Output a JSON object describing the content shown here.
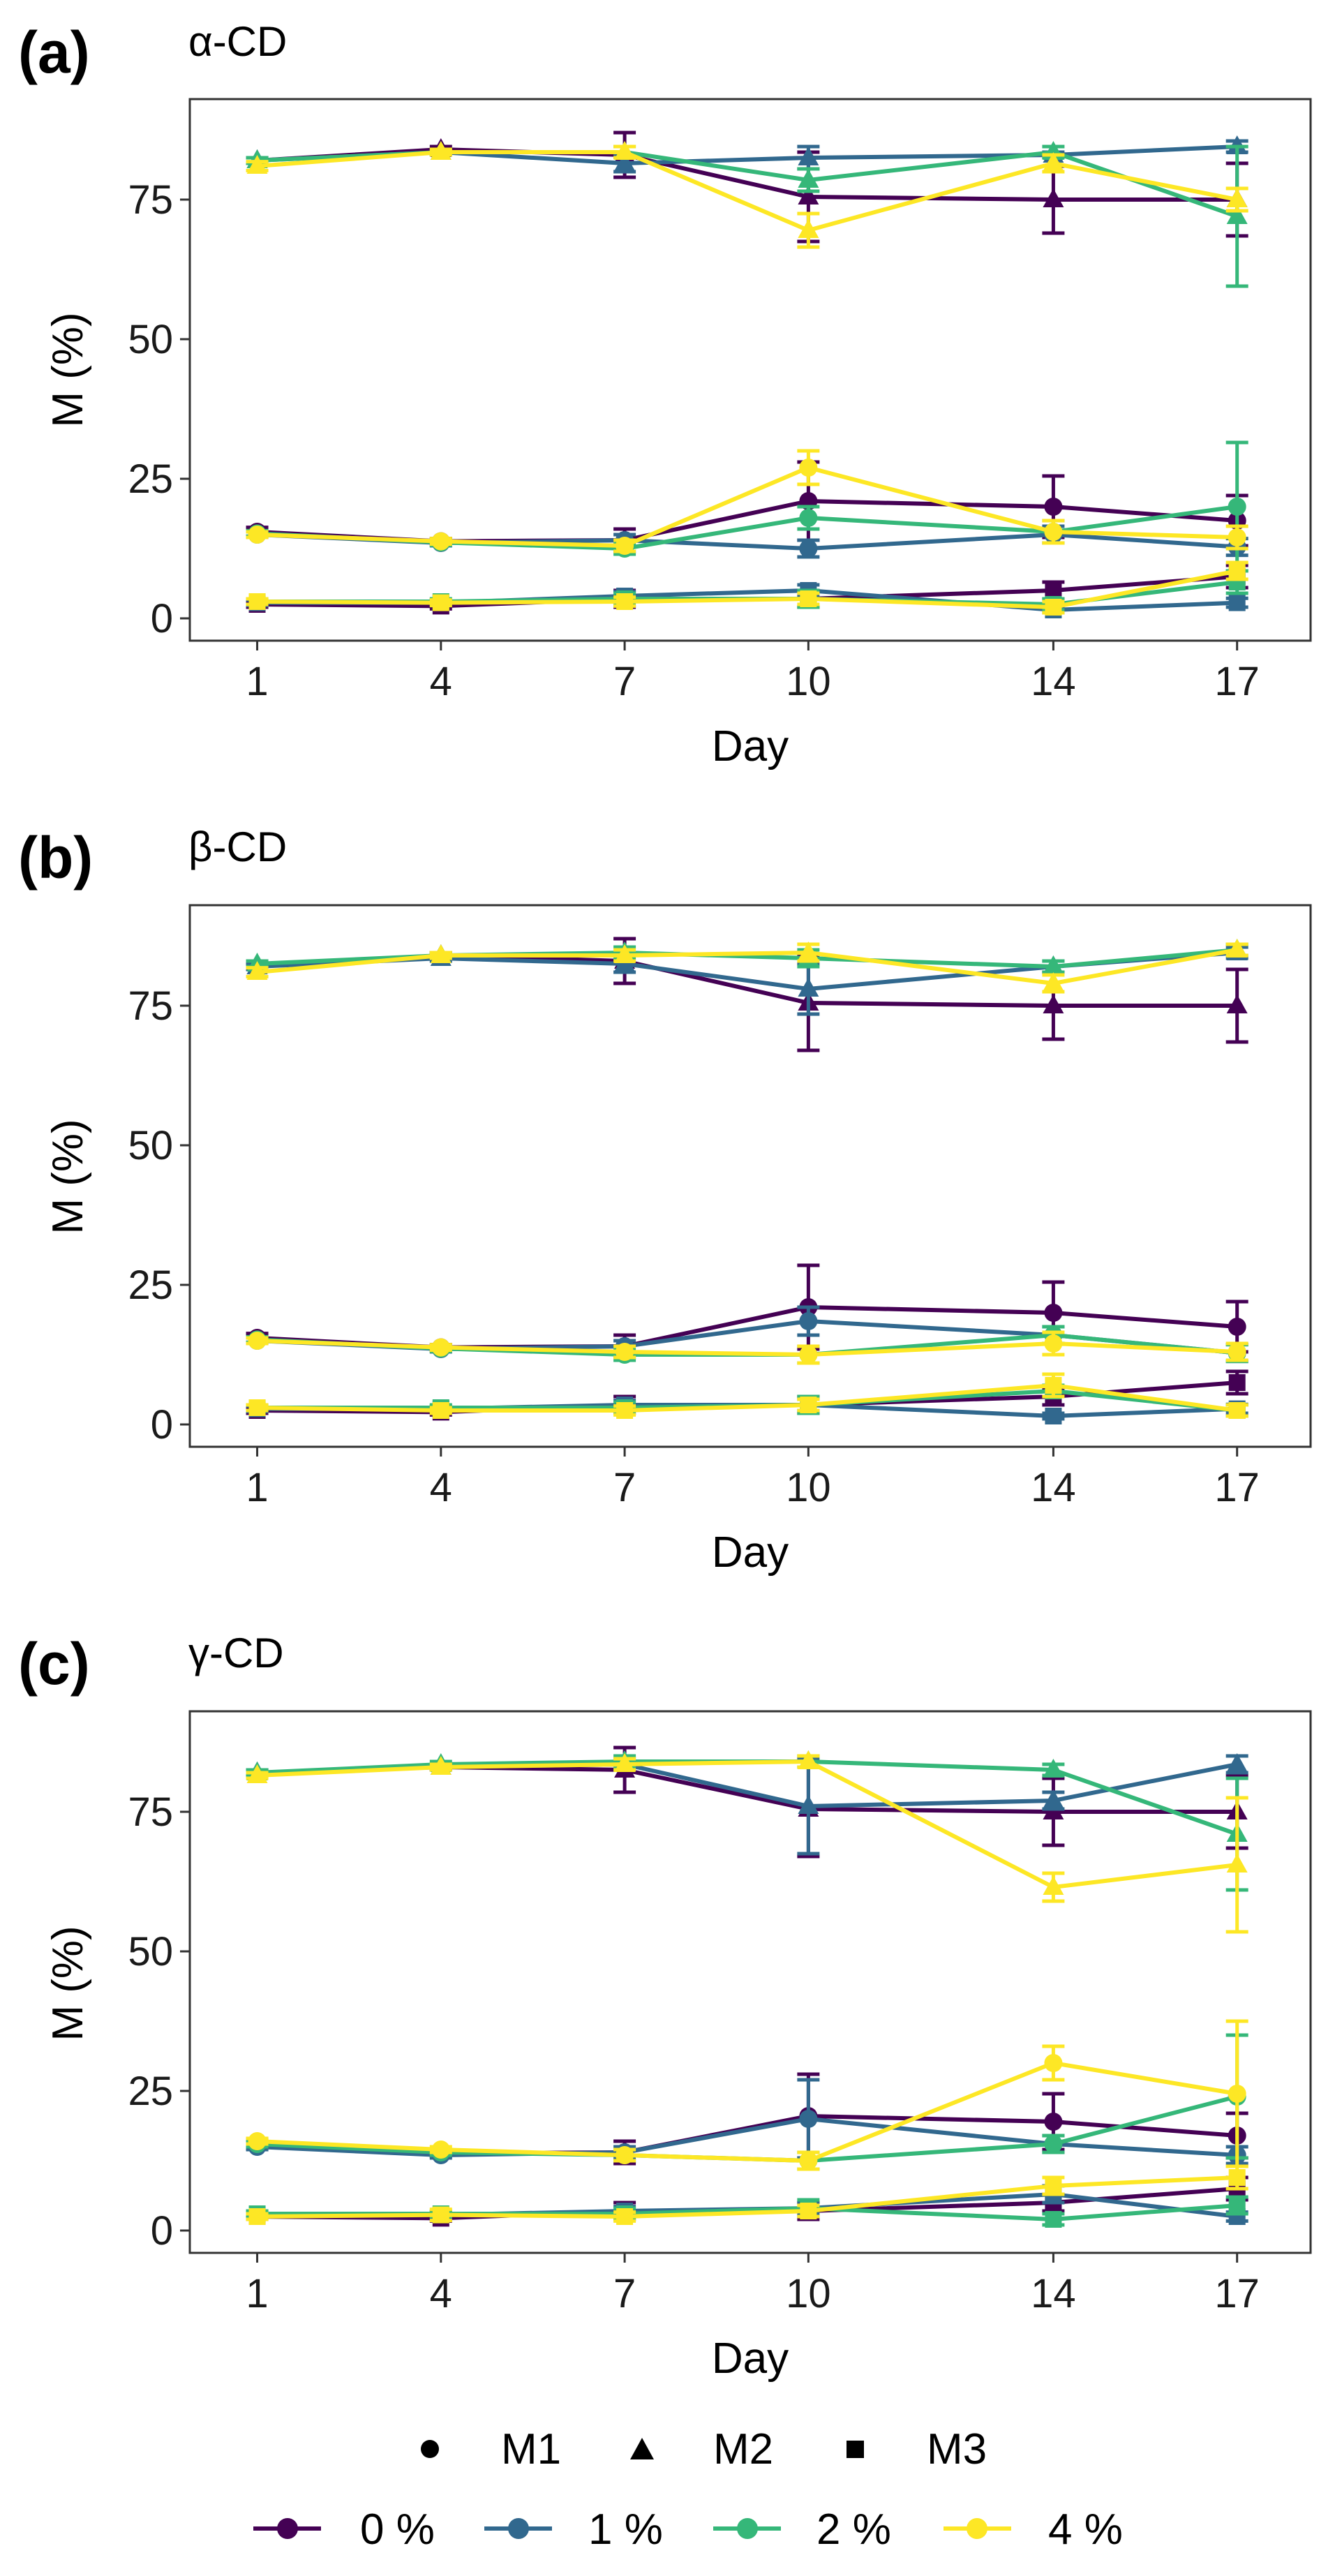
{
  "legend": {
    "shape_items": [
      {
        "label": "M1",
        "shape": "circle"
      },
      {
        "label": "M2",
        "shape": "triangle"
      },
      {
        "label": "M3",
        "shape": "square"
      }
    ],
    "color_items": [
      {
        "label": "0 %",
        "color": "#440154"
      },
      {
        "label": "1 %",
        "color": "#31688E"
      },
      {
        "label": "2 %",
        "color": "#35B779"
      },
      {
        "label": "4 %",
        "color": "#FDE725"
      }
    ]
  },
  "chart_data": [
    {
      "type": "line",
      "panel_label": "(a)",
      "title": "α-CD",
      "xlabel": "Day",
      "ylabel": "M (%)",
      "x": [
        1,
        4,
        7,
        10,
        14,
        17
      ],
      "xticks": [
        "1",
        "4",
        "7",
        "10",
        "14",
        "17"
      ],
      "yticks": [
        "0",
        "25",
        "50",
        "75"
      ],
      "ytick_values": [
        0,
        25,
        50,
        75
      ],
      "ylim": [
        -4,
        93
      ],
      "series": [
        {
          "name": "0 %",
          "metric": "M1",
          "color": "#440154",
          "values": [
            15.5,
            13.8,
            14.0,
            21.0,
            20.0,
            17.5
          ],
          "err": [
            0.8,
            0.5,
            2.0,
            7.0,
            5.5,
            4.5
          ]
        },
        {
          "name": "0 %",
          "metric": "M2",
          "color": "#440154",
          "values": [
            82.0,
            84.0,
            83.0,
            75.5,
            75.0,
            75.0
          ],
          "err": [
            0.5,
            0.5,
            4.0,
            8.0,
            6.0,
            6.5
          ]
        },
        {
          "name": "0 %",
          "metric": "M3",
          "color": "#440154",
          "values": [
            2.5,
            2.2,
            3.5,
            3.5,
            5.0,
            7.5
          ],
          "err": [
            0.5,
            0.5,
            1.5,
            1.5,
            1.5,
            2.0
          ]
        },
        {
          "name": "1 %",
          "metric": "M1",
          "color": "#31688E",
          "values": [
            15.0,
            13.5,
            14.0,
            12.5,
            15.0,
            12.8
          ],
          "err": [
            0.5,
            0.5,
            1.0,
            1.5,
            1.5,
            1.5
          ]
        },
        {
          "name": "1 %",
          "metric": "M2",
          "color": "#31688E",
          "values": [
            82.0,
            83.5,
            81.5,
            82.5,
            83.0,
            84.5
          ],
          "err": [
            0.5,
            0.5,
            1.5,
            2.0,
            0.5,
            1.0
          ]
        },
        {
          "name": "1 %",
          "metric": "M3",
          "color": "#31688E",
          "values": [
            2.8,
            2.8,
            4.0,
            5.0,
            1.5,
            2.8
          ],
          "err": [
            0.5,
            0.5,
            0.8,
            1.0,
            0.5,
            0.8
          ]
        },
        {
          "name": "2 %",
          "metric": "M1",
          "color": "#35B779",
          "values": [
            15.2,
            13.6,
            12.5,
            18.0,
            15.5,
            20.0
          ],
          "err": [
            0.5,
            0.5,
            1.0,
            2.0,
            2.0,
            11.5
          ]
        },
        {
          "name": "2 %",
          "metric": "M2",
          "color": "#35B779",
          "values": [
            82.0,
            83.5,
            83.5,
            78.5,
            83.5,
            72.0
          ],
          "err": [
            0.5,
            0.5,
            1.0,
            2.0,
            1.0,
            12.5
          ]
        },
        {
          "name": "2 %",
          "metric": "M3",
          "color": "#35B779",
          "values": [
            3.0,
            3.0,
            3.5,
            3.5,
            2.5,
            6.5
          ],
          "err": [
            0.5,
            0.5,
            1.0,
            1.5,
            1.0,
            2.0
          ]
        },
        {
          "name": "4 %",
          "metric": "M1",
          "color": "#FDE725",
          "values": [
            15.0,
            13.8,
            13.0,
            27.0,
            15.5,
            14.5
          ],
          "err": [
            0.5,
            0.5,
            1.0,
            3.0,
            2.0,
            2.0
          ]
        },
        {
          "name": "4 %",
          "metric": "M2",
          "color": "#FDE725",
          "values": [
            81.0,
            83.5,
            83.5,
            69.5,
            81.5,
            75.0
          ],
          "err": [
            0.8,
            0.5,
            1.0,
            3.0,
            1.5,
            2.0
          ]
        },
        {
          "name": "4 %",
          "metric": "M3",
          "color": "#FDE725",
          "values": [
            3.0,
            2.8,
            3.0,
            3.5,
            2.0,
            8.5
          ],
          "err": [
            0.5,
            0.5,
            0.8,
            1.0,
            1.0,
            1.5
          ]
        }
      ]
    },
    {
      "type": "line",
      "panel_label": "(b)",
      "title": "β-CD",
      "xlabel": "Day",
      "ylabel": "M (%)",
      "x": [
        1,
        4,
        7,
        10,
        14,
        17
      ],
      "xticks": [
        "1",
        "4",
        "7",
        "10",
        "14",
        "17"
      ],
      "yticks": [
        "0",
        "25",
        "50",
        "75"
      ],
      "ytick_values": [
        0,
        25,
        50,
        75
      ],
      "ylim": [
        -4,
        93
      ],
      "series": [
        {
          "name": "0 %",
          "metric": "M1",
          "color": "#440154",
          "values": [
            15.5,
            13.8,
            14.0,
            21.0,
            20.0,
            17.5
          ],
          "err": [
            0.8,
            0.5,
            2.0,
            7.5,
            5.5,
            4.5
          ]
        },
        {
          "name": "0 %",
          "metric": "M2",
          "color": "#440154",
          "values": [
            82.0,
            84.0,
            83.0,
            75.5,
            75.0,
            75.0
          ],
          "err": [
            0.5,
            0.5,
            4.0,
            8.5,
            6.0,
            6.5
          ]
        },
        {
          "name": "0 %",
          "metric": "M3",
          "color": "#440154",
          "values": [
            2.5,
            2.2,
            3.5,
            3.5,
            5.0,
            7.5
          ],
          "err": [
            0.5,
            0.5,
            1.5,
            1.5,
            1.5,
            2.0
          ]
        },
        {
          "name": "1 %",
          "metric": "M1",
          "color": "#31688E",
          "values": [
            15.0,
            13.5,
            14.0,
            18.5,
            16.0,
            12.8
          ],
          "err": [
            0.5,
            0.5,
            1.0,
            2.5,
            1.5,
            1.5
          ]
        },
        {
          "name": "1 %",
          "metric": "M2",
          "color": "#31688E",
          "values": [
            82.0,
            83.5,
            82.5,
            78.0,
            82.0,
            84.5
          ],
          "err": [
            0.5,
            0.5,
            1.5,
            4.5,
            1.0,
            1.0
          ]
        },
        {
          "name": "1 %",
          "metric": "M3",
          "color": "#31688E",
          "values": [
            2.8,
            2.8,
            3.5,
            3.5,
            1.5,
            2.8
          ],
          "err": [
            0.5,
            0.5,
            0.8,
            1.0,
            0.5,
            0.8
          ]
        },
        {
          "name": "2 %",
          "metric": "M1",
          "color": "#35B779",
          "values": [
            15.2,
            13.6,
            12.5,
            12.5,
            16.0,
            12.8
          ],
          "err": [
            0.5,
            0.5,
            1.0,
            1.5,
            1.5,
            1.5
          ]
        },
        {
          "name": "2 %",
          "metric": "M2",
          "color": "#35B779",
          "values": [
            82.5,
            84.0,
            84.5,
            83.5,
            82.0,
            85.0
          ],
          "err": [
            0.5,
            0.5,
            1.0,
            1.5,
            1.0,
            1.0
          ]
        },
        {
          "name": "2 %",
          "metric": "M3",
          "color": "#35B779",
          "values": [
            3.0,
            3.0,
            3.0,
            3.5,
            6.0,
            2.5
          ],
          "err": [
            0.5,
            0.5,
            1.0,
            1.5,
            1.0,
            1.0
          ]
        },
        {
          "name": "4 %",
          "metric": "M1",
          "color": "#FDE725",
          "values": [
            15.0,
            13.8,
            13.0,
            12.5,
            14.5,
            13.0
          ],
          "err": [
            0.5,
            0.5,
            1.0,
            1.5,
            2.0,
            1.5
          ]
        },
        {
          "name": "4 %",
          "metric": "M2",
          "color": "#FDE725",
          "values": [
            81.0,
            84.0,
            84.0,
            84.5,
            79.0,
            85.0
          ],
          "err": [
            0.8,
            0.5,
            1.0,
            1.5,
            1.5,
            1.0
          ]
        },
        {
          "name": "4 %",
          "metric": "M3",
          "color": "#FDE725",
          "values": [
            3.0,
            2.5,
            2.5,
            3.5,
            7.0,
            2.5
          ],
          "err": [
            0.5,
            0.5,
            0.8,
            1.0,
            2.0,
            1.0
          ]
        }
      ]
    },
    {
      "type": "line",
      "panel_label": "(c)",
      "title": "γ-CD",
      "xlabel": "Day",
      "ylabel": "M (%)",
      "x": [
        1,
        4,
        7,
        10,
        14,
        17
      ],
      "xticks": [
        "1",
        "4",
        "7",
        "10",
        "14",
        "17"
      ],
      "yticks": [
        "0",
        "25",
        "50",
        "75"
      ],
      "ytick_values": [
        0,
        25,
        50,
        75
      ],
      "ylim": [
        -4,
        93
      ],
      "series": [
        {
          "name": "0 %",
          "metric": "M1",
          "color": "#440154",
          "values": [
            15.5,
            13.8,
            14.0,
            20.5,
            19.5,
            17.0
          ],
          "err": [
            0.8,
            0.5,
            2.0,
            7.5,
            5.0,
            4.0
          ]
        },
        {
          "name": "0 %",
          "metric": "M2",
          "color": "#440154",
          "values": [
            82.0,
            83.0,
            82.5,
            75.5,
            75.0,
            75.0
          ],
          "err": [
            0.5,
            0.5,
            4.0,
            8.5,
            6.0,
            6.5
          ]
        },
        {
          "name": "0 %",
          "metric": "M3",
          "color": "#440154",
          "values": [
            2.5,
            2.2,
            3.5,
            3.5,
            5.0,
            7.5
          ],
          "err": [
            0.5,
            0.5,
            1.5,
            1.5,
            1.5,
            2.0
          ]
        },
        {
          "name": "1 %",
          "metric": "M1",
          "color": "#31688E",
          "values": [
            15.0,
            13.5,
            14.0,
            20.0,
            15.5,
            13.5
          ],
          "err": [
            0.5,
            0.5,
            1.0,
            7.0,
            1.5,
            1.5
          ]
        },
        {
          "name": "1 %",
          "metric": "M2",
          "color": "#31688E",
          "values": [
            82.0,
            83.0,
            83.5,
            76.0,
            77.0,
            83.5
          ],
          "err": [
            0.5,
            0.5,
            1.0,
            8.5,
            1.5,
            1.5
          ]
        },
        {
          "name": "1 %",
          "metric": "M3",
          "color": "#31688E",
          "values": [
            2.8,
            2.8,
            3.5,
            4.0,
            6.5,
            2.5
          ],
          "err": [
            0.5,
            0.5,
            0.8,
            1.0,
            1.5,
            0.8
          ]
        },
        {
          "name": "2 %",
          "metric": "M1",
          "color": "#35B779",
          "values": [
            15.5,
            14.0,
            13.5,
            12.5,
            15.5,
            24.0
          ],
          "err": [
            0.5,
            0.5,
            1.0,
            1.5,
            1.5,
            11.0
          ]
        },
        {
          "name": "2 %",
          "metric": "M2",
          "color": "#35B779",
          "values": [
            82.0,
            83.5,
            84.0,
            84.0,
            82.5,
            71.0
          ],
          "err": [
            0.5,
            0.5,
            1.0,
            1.0,
            1.0,
            10.0
          ]
        },
        {
          "name": "2 %",
          "metric": "M3",
          "color": "#35B779",
          "values": [
            3.0,
            3.0,
            3.0,
            4.0,
            2.0,
            4.5
          ],
          "err": [
            0.5,
            0.5,
            1.0,
            1.5,
            1.0,
            1.5
          ]
        },
        {
          "name": "4 %",
          "metric": "M1",
          "color": "#FDE725",
          "values": [
            16.0,
            14.5,
            13.5,
            12.5,
            30.0,
            24.5
          ],
          "err": [
            0.5,
            0.5,
            1.0,
            1.5,
            3.0,
            13.0
          ]
        },
        {
          "name": "4 %",
          "metric": "M2",
          "color": "#FDE725",
          "values": [
            81.5,
            83.0,
            83.5,
            84.0,
            61.5,
            65.5
          ],
          "err": [
            0.5,
            0.5,
            1.0,
            1.0,
            2.5,
            12.0
          ]
        },
        {
          "name": "4 %",
          "metric": "M3",
          "color": "#FDE725",
          "values": [
            2.5,
            2.8,
            2.5,
            3.5,
            8.0,
            9.5
          ],
          "err": [
            0.5,
            1.0,
            0.8,
            1.0,
            1.5,
            2.0
          ]
        }
      ]
    }
  ]
}
